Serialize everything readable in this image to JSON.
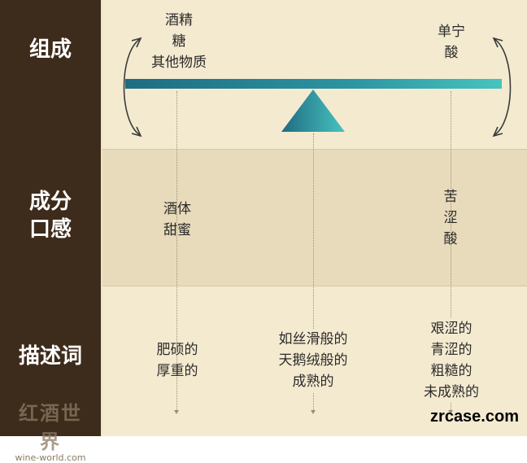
{
  "rows": {
    "composition": "组成",
    "taste_line1": "成分",
    "taste_line2": "口感",
    "descriptors": "描述词"
  },
  "composition": {
    "left": [
      "酒精",
      "糖",
      "其他物质"
    ],
    "right": [
      "单宁",
      "酸"
    ]
  },
  "taste": {
    "left": [
      "酒体",
      "甜蜜"
    ],
    "right": [
      "苦",
      "涩",
      "酸"
    ]
  },
  "descriptors": {
    "left": [
      "肥硕的",
      "厚重的"
    ],
    "center": [
      "如丝滑般的",
      "天鹅绒般的",
      "成熟的"
    ],
    "right": [
      "艰涩的",
      "青涩的",
      "粗糙的",
      "未成熟的"
    ]
  },
  "logo": {
    "cn": "红酒世界",
    "en": "wine-world.com"
  },
  "watermark": "zrcase.com",
  "colors": {
    "left_panel": "#3d2b1b",
    "background": "#f4ead0",
    "band_middle": "#e8dbbb",
    "beam_start": "#1e6c82",
    "beam_end": "#48c3bf"
  },
  "icons": [
    "curved-arrow-left-icon",
    "curved-arrow-right-icon",
    "fulcrum-triangle-icon",
    "dotted-down-arrow-icon"
  ]
}
